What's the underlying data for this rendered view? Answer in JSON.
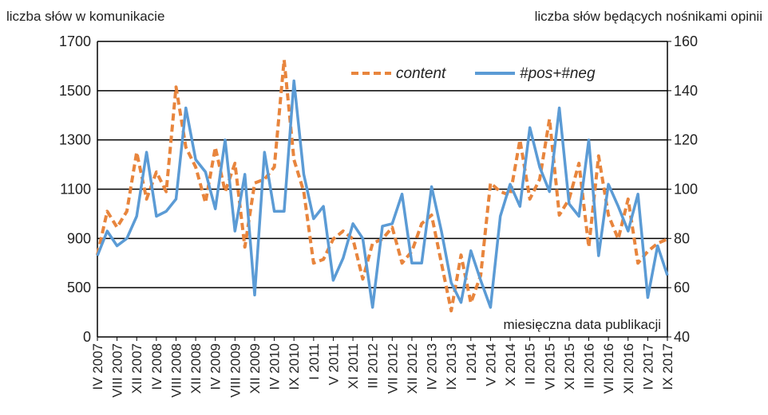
{
  "chart_data": {
    "type": "line",
    "y_label": "liczba słów w komunikacie",
    "y2_label": "liczba słów będących nośnikami opinii",
    "annotation": "miesięczna data publikacji",
    "categories": [
      "IV 2007",
      null,
      "VIII 2007",
      null,
      "XII 2007",
      null,
      "IV 2008",
      null,
      "VIII 2008",
      null,
      "XII 2008",
      null,
      "IV 2009",
      null,
      "VIII 2009",
      null,
      "XII 2009",
      null,
      "IV 2010",
      null,
      "IX 2010",
      null,
      "I 2011",
      null,
      "V 2011",
      null,
      "XI 2011",
      null,
      "III 2012",
      null,
      "VII 2012",
      null,
      "XII 2012",
      null,
      "IV 2013",
      null,
      "IX 2013",
      null,
      "I 2014",
      null,
      "V 2014",
      null,
      "X 2014",
      null,
      "II 2015",
      null,
      "VI 2015",
      null,
      "XI 2015",
      null,
      "III 2016",
      null,
      "VII 2016",
      null,
      "XII 2016",
      null,
      "IV 2017",
      null,
      "IX 2017"
    ],
    "series": [
      {
        "name": "content",
        "color": "#e8853d",
        "dashed": true,
        "values": [
          765,
          1010,
          945,
          1010,
          1250,
          1060,
          1170,
          1090,
          1515,
          1270,
          1190,
          1045,
          1270,
          1090,
          1205,
          830,
          1125,
          1140,
          1190,
          1625,
          1220,
          1090,
          700,
          730,
          895,
          930,
          895,
          570,
          860,
          895,
          945,
          700,
          795,
          960,
          995,
          700,
          265,
          765,
          345,
          600,
          1125,
          1090,
          1075,
          1300,
          1060,
          1140,
          1385,
          995,
          1060,
          1205,
          830,
          1235,
          995,
          895,
          1060,
          700,
          795,
          860,
          895
        ]
      },
      {
        "name": "#pos+#neg",
        "color": "#5b9bd5",
        "dashed": false,
        "axis": "y2",
        "values": [
          73,
          83,
          77,
          80,
          89,
          115,
          89,
          91,
          96,
          133,
          112,
          107,
          92,
          120,
          83,
          106,
          57,
          115,
          91,
          91,
          144,
          106,
          88,
          93,
          63,
          72,
          86,
          80,
          52,
          85,
          86,
          98,
          70,
          70,
          101,
          83,
          62,
          54,
          75,
          63,
          52,
          89,
          102,
          93,
          125,
          109,
          99,
          133,
          94,
          89,
          120,
          73,
          102,
          93,
          83,
          98,
          56,
          77,
          65
        ]
      }
    ],
    "ylim": [
      0,
      1700
    ],
    "yticks": [
      0,
      500,
      900,
      1100,
      1300,
      1500,
      1700
    ],
    "y2lim": [
      40,
      160
    ],
    "y2ticks": [
      40,
      60,
      80,
      100,
      120,
      140,
      160
    ],
    "grid": true,
    "legend": "top-center"
  }
}
